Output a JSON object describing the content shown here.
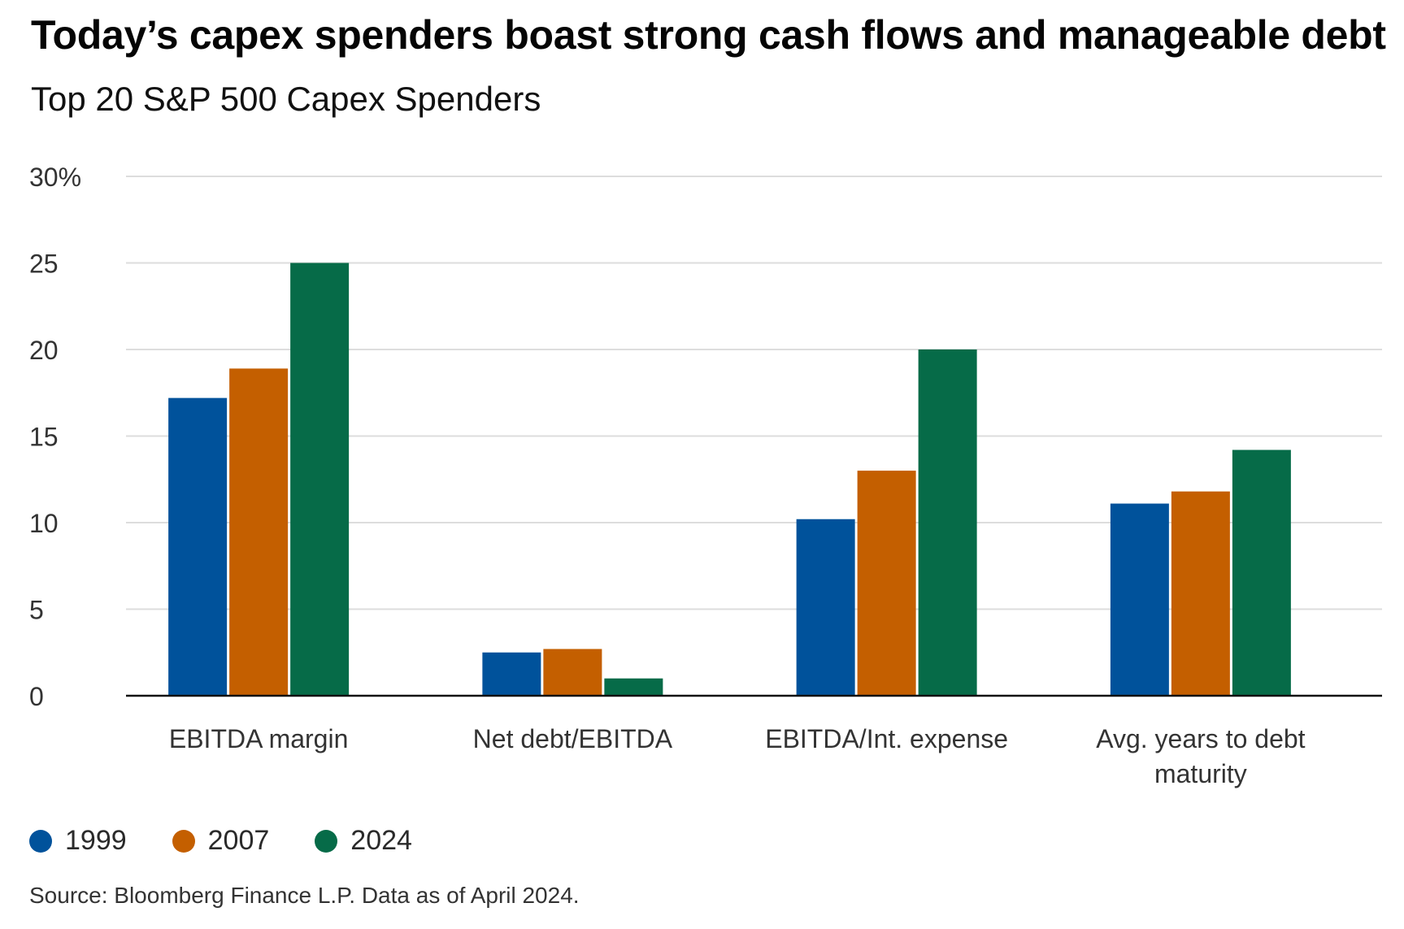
{
  "header": {
    "title": "Today’s capex spenders boast strong cash flows and manageable debt",
    "subtitle": "Top 20 S&P 500 Capex Spenders"
  },
  "chart_data": {
    "type": "bar",
    "title": "Today’s capex spenders boast strong cash flows and manageable debt",
    "subtitle": "Top 20 S&P 500 Capex Spenders",
    "xlabel": "",
    "ylabel": "",
    "ylim": [
      0,
      30
    ],
    "yticks": [
      0,
      5,
      10,
      15,
      20,
      25,
      30
    ],
    "ytick_labels": [
      "0",
      "5",
      "10",
      "15",
      "20",
      "25",
      "30%"
    ],
    "grid": true,
    "categories": [
      [
        "EBITDA margin"
      ],
      [
        "Net debt/EBITDA"
      ],
      [
        "EBITDA/Int. expense"
      ],
      [
        "Avg. years to debt",
        "maturity"
      ]
    ],
    "series": [
      {
        "name": "1999",
        "color": "#00529B",
        "values": [
          17.2,
          2.5,
          10.2,
          11.1
        ]
      },
      {
        "name": "2007",
        "color": "#C45F00",
        "values": [
          18.9,
          2.7,
          13.0,
          11.8
        ]
      },
      {
        "name": "2024",
        "color": "#066B48",
        "values": [
          25.0,
          1.0,
          20.0,
          14.2
        ]
      }
    ],
    "legend_position": "bottom-left"
  },
  "legend": {
    "items": [
      {
        "label": "1999",
        "color": "#00529B"
      },
      {
        "label": "2007",
        "color": "#C45F00"
      },
      {
        "label": "2024",
        "color": "#066B48"
      }
    ]
  },
  "footer": {
    "source": "Source: Bloomberg Finance L.P. Data as of April 2024."
  }
}
